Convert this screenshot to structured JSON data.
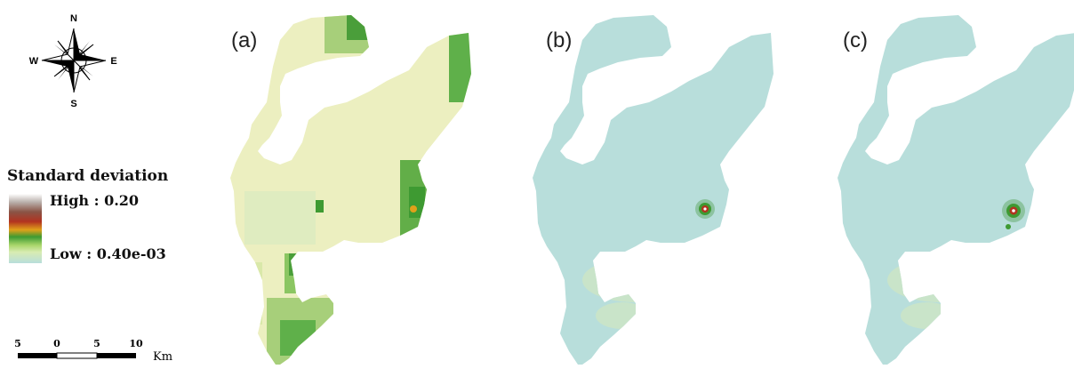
{
  "compass": {
    "north": "N",
    "south": "S",
    "east": "E",
    "west": "W"
  },
  "legend": {
    "title": "Standard deviation",
    "high": "High : 0.20",
    "low": "Low : 0.40e-03",
    "ramp_colors": [
      "#ffffff",
      "#8a5446",
      "#b23320",
      "#e0a11a",
      "#3e9a32",
      "#a9d66a",
      "#b8dedb"
    ]
  },
  "scalebar": {
    "ticks": [
      "5",
      "0",
      "5",
      "10"
    ],
    "unit": "Km"
  },
  "panels": [
    {
      "label": "(a)"
    },
    {
      "label": "(b)"
    },
    {
      "label": "(c)"
    }
  ],
  "colors": {
    "low_fill": "#b8dedb",
    "mid_fill": "#ecefc0",
    "green": "#4a9e3a",
    "hotspot": "#b23320"
  }
}
